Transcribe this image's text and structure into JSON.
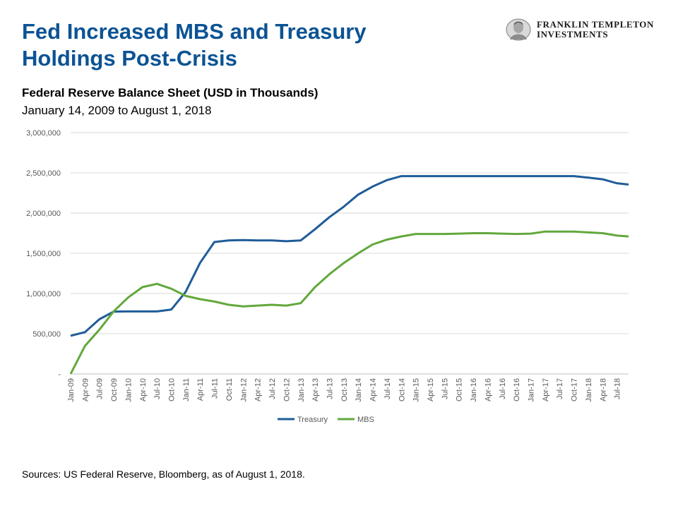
{
  "slide": {
    "title_line1": "Fed Increased MBS and Treasury",
    "title_line2": "Holdings Post-Crisis",
    "sources": "Sources: US Federal Reserve, Bloomberg, as of August 1, 2018."
  },
  "logo": {
    "line1": "FRANKLIN TEMPLETON",
    "line2": "INVESTMENTS",
    "icon": "benjamin-franklin-portrait-seal"
  },
  "colors": {
    "title": "#0b5394",
    "treasury": "#1f5c99",
    "mbs": "#62a83c",
    "grid": "#d9d9d9",
    "tick_text": "#595959"
  },
  "chart_data": {
    "type": "line",
    "title": "Federal Reserve Balance Sheet (USD in Thousands)",
    "subtitle": "January 14, 2009 to August 1, 2018",
    "xlabel": "",
    "ylabel": "",
    "ylim": [
      0,
      3000000
    ],
    "grid": true,
    "legend_position": "bottom",
    "y_ticks": [
      0,
      500000,
      1000000,
      1500000,
      2000000,
      2500000,
      3000000
    ],
    "y_tick_labels": [
      "-",
      "500,000",
      "1,000,000",
      "1,500,000",
      "2,000,000",
      "2,500,000",
      "3,000,000"
    ],
    "x_tick_labels": [
      "Jan-09",
      "Apr-09",
      "Jul-09",
      "Oct-09",
      "Jan-10",
      "Apr-10",
      "Jul-10",
      "Oct-10",
      "Jan-11",
      "Apr-11",
      "Jul-11",
      "Oct-11",
      "Jan-12",
      "Apr-12",
      "Jul-12",
      "Oct-12",
      "Jan-13",
      "Apr-13",
      "Jul-13",
      "Oct-13",
      "Jan-14",
      "Apr-14",
      "Jul-14",
      "Oct-14",
      "Jan-15",
      "Apr-15",
      "Jul-15",
      "Oct-15",
      "Jan-16",
      "Apr-16",
      "Jul-16",
      "Oct-16",
      "Jan-17",
      "Apr-17",
      "Jul-17",
      "Oct-17",
      "Jan-18",
      "Apr-18",
      "Jul-18"
    ],
    "x": [
      "Jan-09",
      "Apr-09",
      "Jul-09",
      "Oct-09",
      "Jan-10",
      "Apr-10",
      "Jul-10",
      "Oct-10",
      "Jan-11",
      "Apr-11",
      "Jul-11",
      "Oct-11",
      "Jan-12",
      "Apr-12",
      "Jul-12",
      "Oct-12",
      "Jan-13",
      "Apr-13",
      "Jul-13",
      "Oct-13",
      "Jan-14",
      "Apr-14",
      "Jul-14",
      "Oct-14",
      "Jan-15",
      "Apr-15",
      "Jul-15",
      "Oct-15",
      "Jan-16",
      "Apr-16",
      "Jul-16",
      "Oct-16",
      "Jan-17",
      "Apr-17",
      "Jul-17",
      "Oct-17",
      "Jan-18",
      "Apr-18",
      "Jul-18",
      "Aug-18"
    ],
    "series": [
      {
        "name": "Treasury",
        "values": [
          475000,
          520000,
          680000,
          775000,
          777000,
          777000,
          777000,
          800000,
          1020000,
          1380000,
          1640000,
          1660000,
          1665000,
          1660000,
          1660000,
          1650000,
          1660000,
          1800000,
          1950000,
          2080000,
          2230000,
          2330000,
          2410000,
          2460000,
          2460000,
          2460000,
          2460000,
          2460000,
          2460000,
          2460000,
          2460000,
          2460000,
          2460000,
          2460000,
          2460000,
          2460000,
          2440000,
          2420000,
          2370000,
          2355000
        ]
      },
      {
        "name": "MBS",
        "values": [
          0,
          350000,
          550000,
          780000,
          950000,
          1080000,
          1120000,
          1060000,
          970000,
          930000,
          900000,
          860000,
          840000,
          850000,
          860000,
          850000,
          880000,
          1080000,
          1240000,
          1380000,
          1500000,
          1610000,
          1670000,
          1710000,
          1740000,
          1740000,
          1740000,
          1745000,
          1750000,
          1750000,
          1745000,
          1740000,
          1745000,
          1770000,
          1770000,
          1770000,
          1760000,
          1750000,
          1720000,
          1710000
        ]
      }
    ]
  }
}
